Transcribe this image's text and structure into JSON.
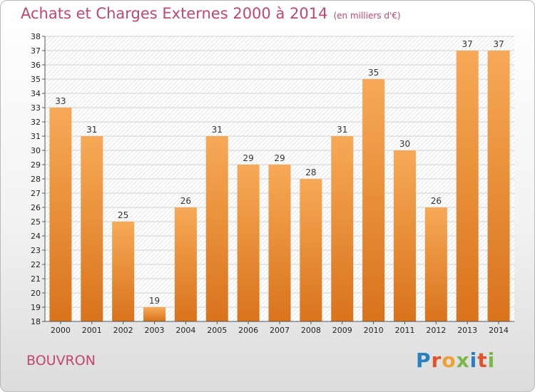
{
  "header": {
    "title": "Achats et Charges Externes 2000 à 2014",
    "subtitle": "(en milliers d'€)"
  },
  "footer": {
    "commune": "BOUVRON",
    "logo_text": "Proxiti",
    "logo_colors": [
      "#2a7fc1",
      "#e2522a",
      "#f0a030",
      "#7ab648",
      "#2a7fc1",
      "#e2522a",
      "#7ab648"
    ]
  },
  "colors": {
    "bar_top": "#f7a957",
    "bar_bottom": "#d9731c",
    "text_accent": "#c2466d"
  },
  "chart_data": {
    "type": "bar",
    "title": "Achats et Charges Externes 2000 à 2014",
    "subtitle": "(en milliers d'€)",
    "categories": [
      "2000",
      "2001",
      "2002",
      "2003",
      "2004",
      "2005",
      "2006",
      "2007",
      "2008",
      "2009",
      "2010",
      "2011",
      "2012",
      "2013",
      "2014"
    ],
    "values": [
      33,
      31,
      25,
      19,
      26,
      31,
      29,
      29,
      28,
      31,
      35,
      30,
      26,
      37,
      37
    ],
    "ylim": [
      18,
      38
    ],
    "yticks": [
      18,
      19,
      20,
      21,
      22,
      23,
      24,
      25,
      26,
      27,
      28,
      29,
      30,
      31,
      32,
      33,
      34,
      35,
      36,
      37,
      38
    ],
    "grid": true,
    "data_labels": true
  }
}
